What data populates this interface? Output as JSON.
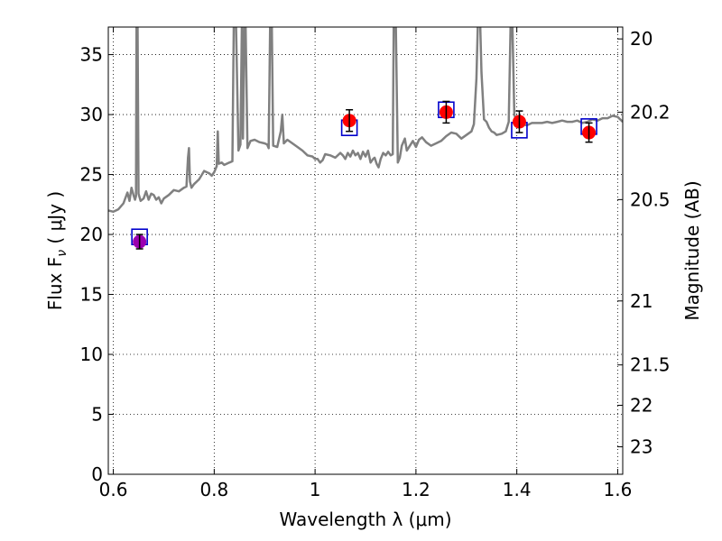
{
  "chart_data": {
    "type": "scatter",
    "xlabel": "Wavelength  λ (μm)",
    "ylabel": "Flux  F",
    "ylabel_subscript": "ν",
    "ylabel_unit": "  ( μJy )",
    "y2label": "Magnitude (AB)",
    "xlim": [
      0.59,
      1.61
    ],
    "ylim": [
      0,
      37.3
    ],
    "xticks": [
      0.6,
      0.8,
      1.0,
      1.2,
      1.4,
      1.6
    ],
    "xtick_labels": [
      "0.6",
      "0.8",
      "1",
      "1.2",
      "1.4",
      "1.6"
    ],
    "yticks": [
      0,
      5,
      10,
      15,
      20,
      25,
      30,
      35
    ],
    "ytick_labels": [
      "0",
      "5",
      "10",
      "15",
      "20",
      "25",
      "30",
      "35"
    ],
    "y2ticks": [
      20,
      20.2,
      20.5,
      21,
      21.5,
      22,
      23
    ],
    "y2tick_labels": [
      "20",
      "20.2",
      "20.5",
      "21",
      "21.5",
      "22",
      "23"
    ],
    "grid": true,
    "colors": {
      "spectrum": "#808080",
      "observed": "#ff0000",
      "model_box": "#0000cc",
      "first_point": "#9b00b0",
      "errorbar": "#000000"
    },
    "observed_points": [
      {
        "x": 0.652,
        "y": 19.4,
        "err": 0.6
      },
      {
        "x": 1.068,
        "y": 29.5,
        "err": 0.9
      },
      {
        "x": 1.26,
        "y": 30.2,
        "err": 0.9
      },
      {
        "x": 1.405,
        "y": 29.4,
        "err": 0.9
      },
      {
        "x": 1.543,
        "y": 28.5,
        "err": 0.8
      }
    ],
    "model_points": [
      {
        "x": 0.652,
        "y": 19.8
      },
      {
        "x": 1.068,
        "y": 28.9
      },
      {
        "x": 1.26,
        "y": 30.4
      },
      {
        "x": 1.405,
        "y": 28.7
      },
      {
        "x": 1.543,
        "y": 29.0
      }
    ],
    "spectrum": [
      [
        0.59,
        22.0
      ],
      [
        0.6,
        21.9
      ],
      [
        0.61,
        22.1
      ],
      [
        0.62,
        22.6
      ],
      [
        0.628,
        23.5
      ],
      [
        0.632,
        22.8
      ],
      [
        0.636,
        23.9
      ],
      [
        0.64,
        23.3
      ],
      [
        0.643,
        22.9
      ],
      [
        0.645,
        23.2
      ],
      [
        0.646,
        38.0
      ],
      [
        0.648,
        38.0
      ],
      [
        0.65,
        23.4
      ],
      [
        0.654,
        22.8
      ],
      [
        0.66,
        23.0
      ],
      [
        0.665,
        23.6
      ],
      [
        0.67,
        22.9
      ],
      [
        0.675,
        23.4
      ],
      [
        0.68,
        23.3
      ],
      [
        0.685,
        22.9
      ],
      [
        0.69,
        23.1
      ],
      [
        0.695,
        22.6
      ],
      [
        0.7,
        23.0
      ],
      [
        0.71,
        23.3
      ],
      [
        0.72,
        23.7
      ],
      [
        0.73,
        23.6
      ],
      [
        0.74,
        23.9
      ],
      [
        0.745,
        24.0
      ],
      [
        0.748,
        26.4
      ],
      [
        0.75,
        27.2
      ],
      [
        0.752,
        24.4
      ],
      [
        0.755,
        23.9
      ],
      [
        0.76,
        24.2
      ],
      [
        0.77,
        24.6
      ],
      [
        0.78,
        25.3
      ],
      [
        0.79,
        25.1
      ],
      [
        0.795,
        24.9
      ],
      [
        0.8,
        25.2
      ],
      [
        0.805,
        25.7
      ],
      [
        0.807,
        28.6
      ],
      [
        0.809,
        25.9
      ],
      [
        0.815,
        26.0
      ],
      [
        0.82,
        25.8
      ],
      [
        0.83,
        26.0
      ],
      [
        0.836,
        26.1
      ],
      [
        0.839,
        38.0
      ],
      [
        0.843,
        38.0
      ],
      [
        0.848,
        27.0
      ],
      [
        0.852,
        27.5
      ],
      [
        0.855,
        38.0
      ],
      [
        0.857,
        28.0
      ],
      [
        0.86,
        38.0
      ],
      [
        0.862,
        38.0
      ],
      [
        0.866,
        27.2
      ],
      [
        0.872,
        27.8
      ],
      [
        0.88,
        27.9
      ],
      [
        0.89,
        27.7
      ],
      [
        0.9,
        27.6
      ],
      [
        0.905,
        27.5
      ],
      [
        0.908,
        27.2
      ],
      [
        0.911,
        38.0
      ],
      [
        0.914,
        38.0
      ],
      [
        0.917,
        27.4
      ],
      [
        0.925,
        27.3
      ],
      [
        0.932,
        28.6
      ],
      [
        0.935,
        30.0
      ],
      [
        0.938,
        27.6
      ],
      [
        0.945,
        27.9
      ],
      [
        0.955,
        27.6
      ],
      [
        0.965,
        27.3
      ],
      [
        0.975,
        27.0
      ],
      [
        0.985,
        26.6
      ],
      [
        0.995,
        26.5
      ],
      [
        1.0,
        26.3
      ],
      [
        1.005,
        26.3
      ],
      [
        1.01,
        26.0
      ],
      [
        1.015,
        26.2
      ],
      [
        1.02,
        26.7
      ],
      [
        1.03,
        26.6
      ],
      [
        1.04,
        26.4
      ],
      [
        1.05,
        26.8
      ],
      [
        1.055,
        26.6
      ],
      [
        1.06,
        26.3
      ],
      [
        1.065,
        26.8
      ],
      [
        1.07,
        26.5
      ],
      [
        1.075,
        27.0
      ],
      [
        1.08,
        26.6
      ],
      [
        1.085,
        26.8
      ],
      [
        1.09,
        26.3
      ],
      [
        1.095,
        26.9
      ],
      [
        1.1,
        26.5
      ],
      [
        1.105,
        27.0
      ],
      [
        1.11,
        26.0
      ],
      [
        1.115,
        26.3
      ],
      [
        1.118,
        26.4
      ],
      [
        1.122,
        25.9
      ],
      [
        1.126,
        25.6
      ],
      [
        1.13,
        26.3
      ],
      [
        1.135,
        26.8
      ],
      [
        1.14,
        26.6
      ],
      [
        1.145,
        26.9
      ],
      [
        1.15,
        26.6
      ],
      [
        1.154,
        26.7
      ],
      [
        1.156,
        38.0
      ],
      [
        1.16,
        38.0
      ],
      [
        1.164,
        26.0
      ],
      [
        1.168,
        26.4
      ],
      [
        1.172,
        27.4
      ],
      [
        1.178,
        28.0
      ],
      [
        1.182,
        27.0
      ],
      [
        1.188,
        27.4
      ],
      [
        1.194,
        27.8
      ],
      [
        1.2,
        27.3
      ],
      [
        1.206,
        27.9
      ],
      [
        1.212,
        28.1
      ],
      [
        1.22,
        27.7
      ],
      [
        1.23,
        27.4
      ],
      [
        1.24,
        27.6
      ],
      [
        1.25,
        27.8
      ],
      [
        1.26,
        28.2
      ],
      [
        1.27,
        28.5
      ],
      [
        1.28,
        28.4
      ],
      [
        1.29,
        28.0
      ],
      [
        1.3,
        28.3
      ],
      [
        1.31,
        28.6
      ],
      [
        1.315,
        29.2
      ],
      [
        1.32,
        33.0
      ],
      [
        1.323,
        38.0
      ],
      [
        1.327,
        38.0
      ],
      [
        1.33,
        33.5
      ],
      [
        1.335,
        29.6
      ],
      [
        1.34,
        29.4
      ],
      [
        1.345,
        28.9
      ],
      [
        1.35,
        28.6
      ],
      [
        1.355,
        28.5
      ],
      [
        1.36,
        28.3
      ],
      [
        1.37,
        28.4
      ],
      [
        1.378,
        28.6
      ],
      [
        1.384,
        29.4
      ],
      [
        1.388,
        38.0
      ],
      [
        1.391,
        38.0
      ],
      [
        1.395,
        30.0
      ],
      [
        1.4,
        29.4
      ],
      [
        1.41,
        29.2
      ],
      [
        1.42,
        29.1
      ],
      [
        1.43,
        29.3
      ],
      [
        1.44,
        29.3
      ],
      [
        1.45,
        29.3
      ],
      [
        1.46,
        29.4
      ],
      [
        1.47,
        29.3
      ],
      [
        1.48,
        29.4
      ],
      [
        1.49,
        29.5
      ],
      [
        1.5,
        29.4
      ],
      [
        1.51,
        29.4
      ],
      [
        1.52,
        29.5
      ],
      [
        1.53,
        29.3
      ],
      [
        1.54,
        29.4
      ],
      [
        1.55,
        29.6
      ],
      [
        1.56,
        29.5
      ],
      [
        1.57,
        29.7
      ],
      [
        1.58,
        29.7
      ],
      [
        1.59,
        29.9
      ],
      [
        1.6,
        29.8
      ],
      [
        1.61,
        29.4
      ]
    ]
  }
}
